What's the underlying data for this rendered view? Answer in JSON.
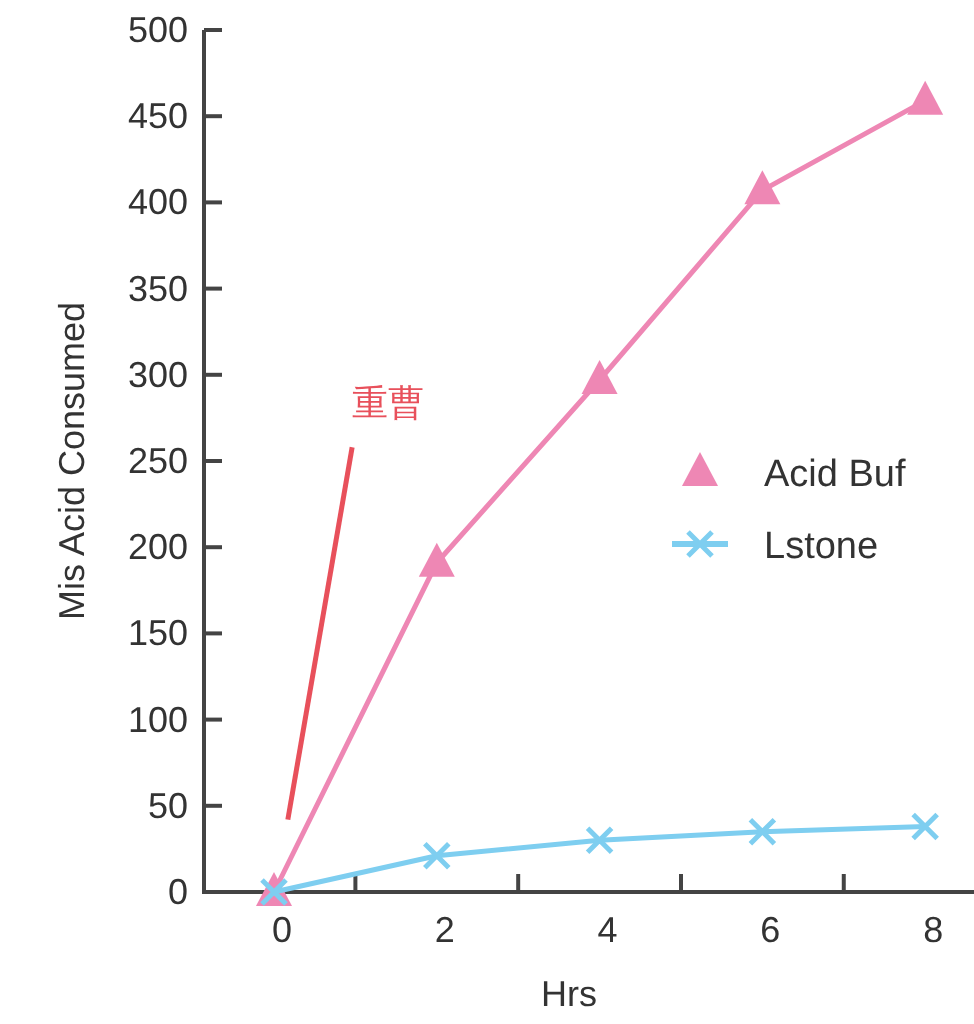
{
  "chart_data": {
    "type": "line",
    "xlabel": "Hrs",
    "ylabel": "Mis Acid Consumed",
    "xlim": [
      -0.86,
      8.6
    ],
    "ylim": [
      0,
      500
    ],
    "xticks": [
      0,
      {
        "value": 1,
        "label": null
      },
      2,
      {
        "value": 3,
        "label": null
      },
      4,
      {
        "value": 5,
        "label": null
      },
      6,
      {
        "value": 7,
        "label": null
      },
      8
    ],
    "yticks": [
      0,
      50,
      100,
      150,
      200,
      250,
      300,
      350,
      400,
      450,
      500
    ],
    "grid": false,
    "legend": "right",
    "line_style": "solid",
    "series": [
      {
        "name": "Acid Buf",
        "color": "#ee87b4",
        "marker": "triangle",
        "x": [
          0,
          2,
          4,
          6,
          8
        ],
        "values": [
          0,
          191,
          297,
          407,
          459
        ]
      },
      {
        "name": "Lstone",
        "color": "#7ecef0",
        "marker": "cross",
        "x": [
          0,
          2,
          4,
          6,
          8
        ],
        "values": [
          0,
          21,
          30,
          35,
          38
        ]
      },
      {
        "name": "重曹",
        "color": "#e8505b",
        "marker": "none",
        "x": [
          0.17,
          0.96
        ],
        "values": [
          42,
          258
        ]
      }
    ]
  }
}
